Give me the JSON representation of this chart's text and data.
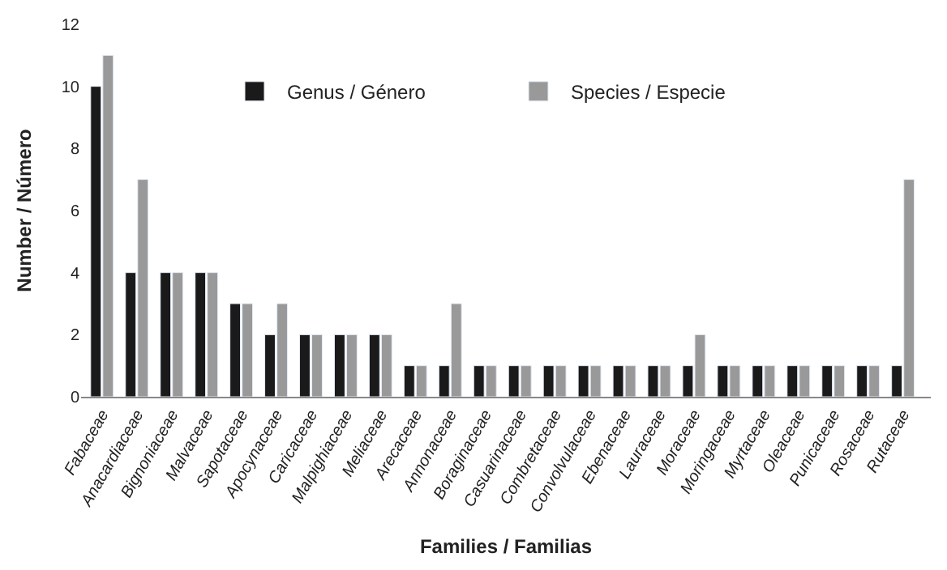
{
  "chart_data": {
    "type": "bar",
    "xlabel": "Families / Familias",
    "ylabel": "Number / Número",
    "categories": [
      "Fabaceae",
      "Anacardiaceae",
      "Bignoniaceae",
      "Malvaceae",
      "Sapotaceae",
      "Apocynaceae",
      "Caricaceae",
      "Malpighiaceae",
      "Meliaceae",
      "Arecaceae",
      "Annonaceae",
      "Boraginaceae",
      "Casuarinaceae",
      "Combretaceae",
      "Convolvulaceae",
      "Ebenaceae",
      "Lauraceae",
      "Moraceae",
      "Moringaceae",
      "Myrtaceae",
      "Oleaceae",
      "Punicaceae",
      "Rosaceae",
      "Rutaceae"
    ],
    "series": [
      {
        "name": "Genus / Género",
        "color": "#1a1a1a",
        "values": [
          10,
          4,
          4,
          4,
          3,
          2,
          2,
          2,
          2,
          1,
          1,
          1,
          1,
          1,
          1,
          1,
          1,
          1,
          1,
          1,
          1,
          1,
          1,
          1
        ]
      },
      {
        "name": "Species / Especie",
        "color": "#999999",
        "values": [
          11,
          7,
          4,
          4,
          3,
          3,
          2,
          2,
          2,
          1,
          3,
          1,
          1,
          1,
          1,
          1,
          1,
          2,
          1,
          1,
          1,
          1,
          1,
          7
        ]
      }
    ],
    "ylim": [
      0,
      12
    ],
    "yticks": [
      0,
      2,
      4,
      6,
      8,
      10,
      12
    ],
    "legend": "top"
  }
}
